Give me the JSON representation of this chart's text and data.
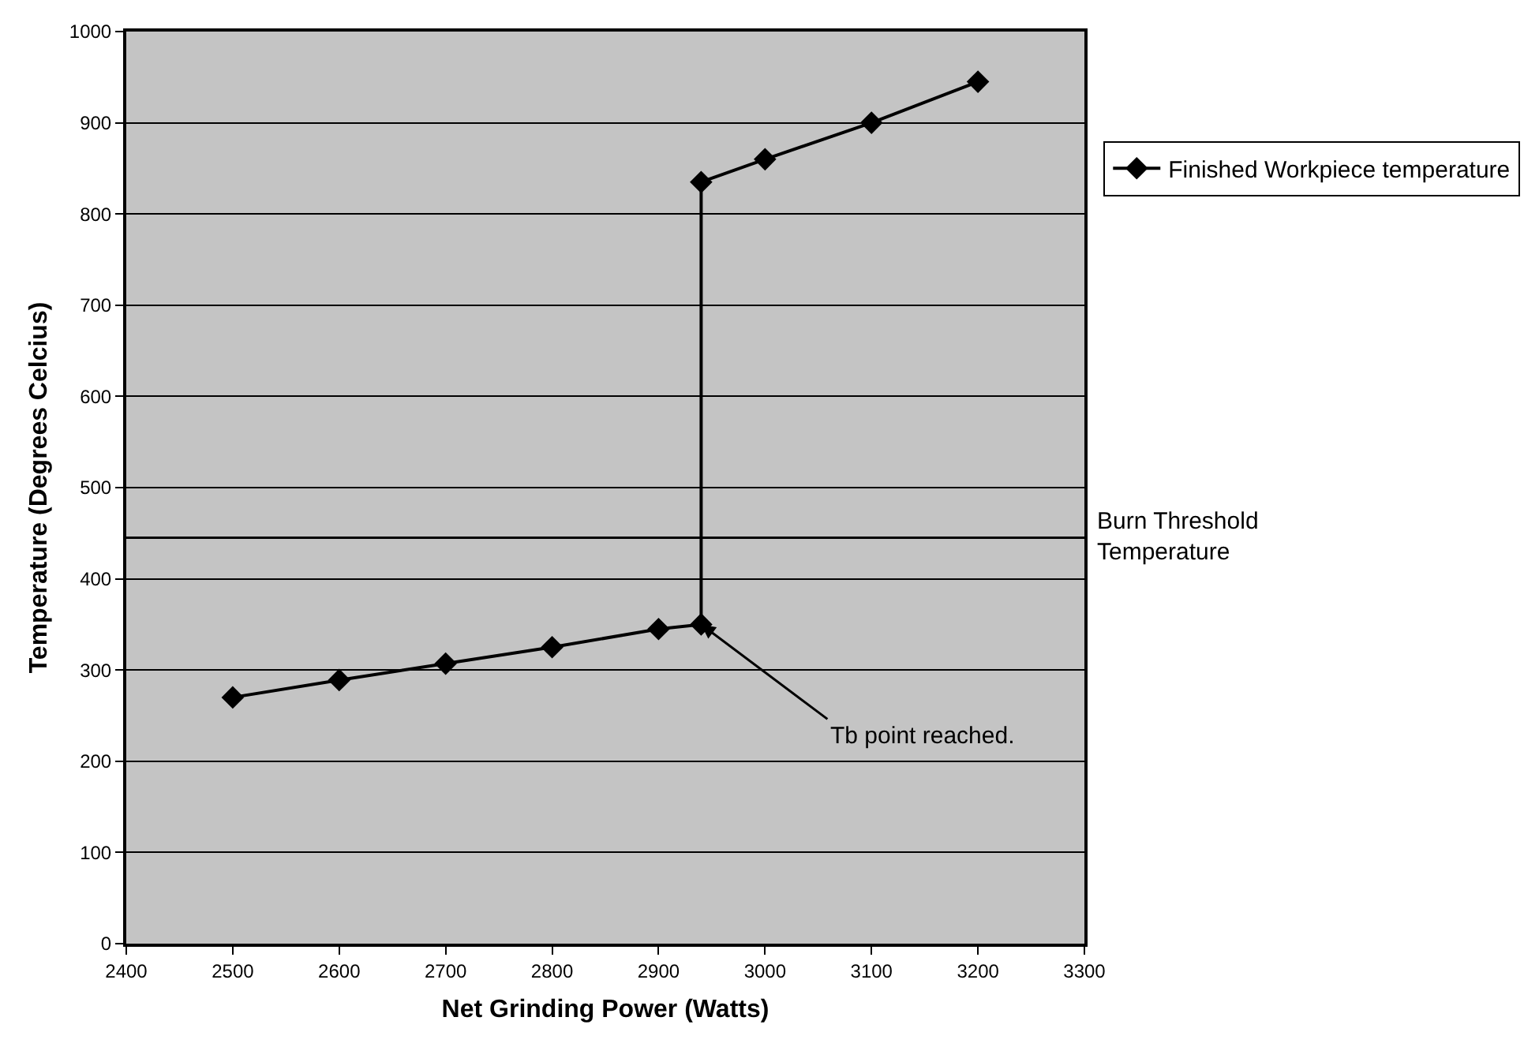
{
  "chart_data": {
    "type": "line",
    "xlabel": "Net Grinding Power (Watts)",
    "ylabel": "Temperature (Degrees Celcius)",
    "x": [
      2500,
      2600,
      2700,
      2800,
      2900,
      2940,
      2940,
      3000,
      3100,
      3200
    ],
    "series": [
      {
        "name": "Finished Workpiece temperature",
        "color": "#000000",
        "values": [
          270,
          289,
          307,
          325,
          345,
          350,
          835,
          860,
          900,
          945
        ]
      }
    ],
    "xlim": [
      2400,
      3300
    ],
    "xticks": [
      2400,
      2500,
      2600,
      2700,
      2800,
      2900,
      3000,
      3100,
      3200,
      3300
    ],
    "ylim": [
      0,
      1000
    ],
    "yticks": [
      0,
      100,
      200,
      300,
      400,
      500,
      600,
      700,
      800,
      900,
      1000
    ],
    "grid": "y",
    "legend": "right",
    "marker": "diamond",
    "line_style": "solid",
    "ref_lines": [
      {
        "axis": "y",
        "value": 445,
        "label": "Burn Threshold Temperature",
        "color": "#000000"
      }
    ],
    "annotations": [
      {
        "text": "Tb point reached.",
        "x": 2940,
        "y": 350
      }
    ]
  }
}
